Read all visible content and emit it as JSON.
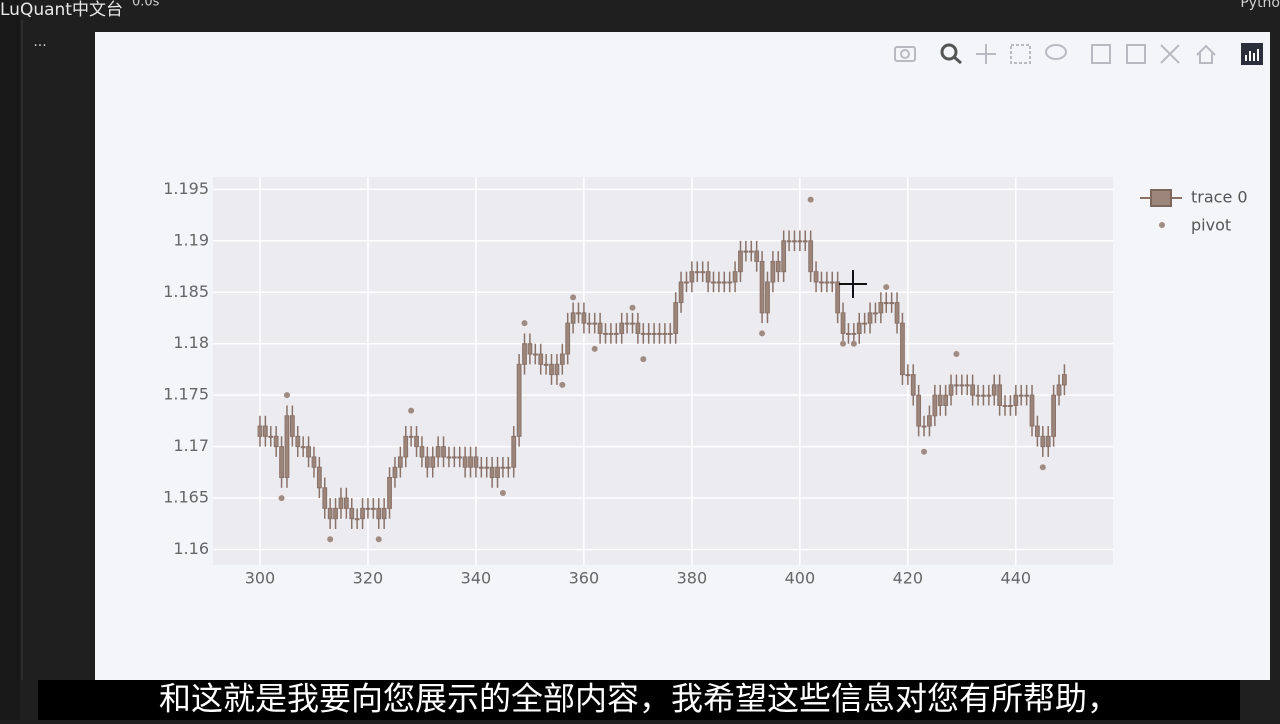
{
  "window": {
    "brand": "LuQuant中文台",
    "cell_time": "0.0s",
    "kernel": "Pytho",
    "cell_menu": "..."
  },
  "chart_data": {
    "type": "candlestick",
    "ylim": [
      1.1585,
      1.1962
    ],
    "yticks": [
      1.16,
      1.165,
      1.17,
      1.175,
      1.18,
      1.185,
      1.19,
      1.195
    ],
    "xlim": [
      291.3,
      458
    ],
    "xticks": [
      300,
      320,
      340,
      360,
      380,
      400,
      420,
      440
    ],
    "grid": true,
    "legend": "right",
    "series": [
      {
        "name": "trace 0",
        "type": "candlestick",
        "color": "#9c857a",
        "x": [
          300,
          301,
          302,
          303,
          304,
          305,
          306,
          307,
          308,
          309,
          310,
          311,
          312,
          313,
          314,
          315,
          316,
          317,
          318,
          319,
          320,
          321,
          322,
          323,
          324,
          325,
          326,
          327,
          328,
          329,
          330,
          331,
          332,
          333,
          334,
          335,
          336,
          337,
          338,
          339,
          340,
          341,
          342,
          343,
          344,
          345,
          346,
          347,
          348,
          349,
          350,
          351,
          352,
          353,
          354,
          355,
          356,
          357,
          358,
          359,
          360,
          361,
          362,
          363,
          364,
          365,
          366,
          367,
          368,
          369,
          370,
          371,
          372,
          373,
          374,
          375,
          376,
          377,
          378,
          379,
          380,
          381,
          382,
          383,
          384,
          385,
          386,
          387,
          388,
          389,
          390,
          391,
          392,
          393,
          394,
          395,
          396,
          397,
          398,
          399,
          400,
          401,
          402,
          403,
          404,
          405,
          406,
          407,
          408,
          409,
          410,
          411,
          412,
          413,
          414,
          415,
          416,
          417,
          418,
          419,
          420,
          421,
          422,
          423,
          424,
          425,
          426,
          427,
          428,
          429,
          430,
          431,
          432,
          433,
          434,
          435,
          436,
          437,
          438,
          439,
          440,
          441,
          442,
          443,
          444,
          445,
          446,
          447,
          448,
          449
        ],
        "open": [
          1.171,
          1.172,
          1.171,
          1.171,
          1.17,
          1.167,
          1.173,
          1.171,
          1.17,
          1.17,
          1.169,
          1.168,
          1.166,
          1.164,
          1.163,
          1.164,
          1.165,
          1.164,
          1.163,
          1.163,
          1.164,
          1.164,
          1.164,
          1.163,
          1.164,
          1.167,
          1.168,
          1.169,
          1.171,
          1.171,
          1.17,
          1.169,
          1.168,
          1.169,
          1.17,
          1.169,
          1.169,
          1.169,
          1.169,
          1.168,
          1.169,
          1.168,
          1.168,
          1.168,
          1.167,
          1.168,
          1.168,
          1.168,
          1.171,
          1.178,
          1.18,
          1.179,
          1.179,
          1.178,
          1.178,
          1.177,
          1.178,
          1.179,
          1.182,
          1.183,
          1.183,
          1.182,
          1.182,
          1.182,
          1.181,
          1.181,
          1.181,
          1.181,
          1.182,
          1.182,
          1.182,
          1.181,
          1.181,
          1.181,
          1.181,
          1.181,
          1.181,
          1.181,
          1.184,
          1.186,
          1.186,
          1.187,
          1.187,
          1.187,
          1.186,
          1.186,
          1.186,
          1.186,
          1.186,
          1.187,
          1.189,
          1.189,
          1.189,
          1.188,
          1.183,
          1.186,
          1.188,
          1.187,
          1.19,
          1.19,
          1.19,
          1.19,
          1.19,
          1.187,
          1.186,
          1.186,
          1.186,
          1.186,
          1.183,
          1.181,
          1.181,
          1.181,
          1.182,
          1.182,
          1.183,
          1.183,
          1.184,
          1.184,
          1.184,
          1.182,
          1.177,
          1.177,
          1.175,
          1.172,
          1.172,
          1.173,
          1.175,
          1.174,
          1.175,
          1.176,
          1.176,
          1.176,
          1.176,
          1.175,
          1.175,
          1.175,
          1.175,
          1.176,
          1.174,
          1.174,
          1.174,
          1.175,
          1.175,
          1.175,
          1.172,
          1.171,
          1.17,
          1.171,
          1.175,
          1.176
        ],
        "high": [
          1.173,
          1.173,
          1.172,
          1.172,
          1.171,
          1.174,
          1.174,
          1.172,
          1.171,
          1.171,
          1.17,
          1.169,
          1.167,
          1.165,
          1.165,
          1.166,
          1.166,
          1.165,
          1.164,
          1.165,
          1.165,
          1.165,
          1.165,
          1.165,
          1.168,
          1.169,
          1.17,
          1.172,
          1.172,
          1.172,
          1.171,
          1.17,
          1.17,
          1.171,
          1.171,
          1.17,
          1.17,
          1.17,
          1.17,
          1.17,
          1.17,
          1.169,
          1.169,
          1.169,
          1.169,
          1.169,
          1.169,
          1.172,
          1.179,
          1.181,
          1.181,
          1.18,
          1.18,
          1.179,
          1.179,
          1.179,
          1.18,
          1.183,
          1.184,
          1.184,
          1.184,
          1.183,
          1.183,
          1.183,
          1.182,
          1.182,
          1.182,
          1.183,
          1.183,
          1.183,
          1.183,
          1.182,
          1.182,
          1.182,
          1.182,
          1.182,
          1.182,
          1.185,
          1.187,
          1.187,
          1.188,
          1.188,
          1.188,
          1.188,
          1.187,
          1.187,
          1.187,
          1.187,
          1.188,
          1.19,
          1.19,
          1.19,
          1.19,
          1.189,
          1.187,
          1.189,
          1.189,
          1.191,
          1.191,
          1.191,
          1.191,
          1.191,
          1.191,
          1.188,
          1.187,
          1.187,
          1.187,
          1.187,
          1.184,
          1.182,
          1.182,
          1.183,
          1.183,
          1.184,
          1.184,
          1.185,
          1.185,
          1.185,
          1.185,
          1.183,
          1.178,
          1.178,
          1.176,
          1.173,
          1.174,
          1.176,
          1.176,
          1.176,
          1.177,
          1.177,
          1.177,
          1.177,
          1.177,
          1.176,
          1.176,
          1.176,
          1.177,
          1.177,
          1.175,
          1.175,
          1.176,
          1.176,
          1.176,
          1.176,
          1.173,
          1.172,
          1.172,
          1.176,
          1.177,
          1.178
        ],
        "low": [
          1.17,
          1.17,
          1.17,
          1.169,
          1.166,
          1.166,
          1.17,
          1.169,
          1.169,
          1.168,
          1.167,
          1.165,
          1.163,
          1.162,
          1.162,
          1.163,
          1.163,
          1.162,
          1.162,
          1.162,
          1.163,
          1.163,
          1.162,
          1.162,
          1.163,
          1.166,
          1.167,
          1.168,
          1.17,
          1.169,
          1.168,
          1.167,
          1.167,
          1.168,
          1.168,
          1.168,
          1.168,
          1.168,
          1.167,
          1.167,
          1.167,
          1.167,
          1.167,
          1.166,
          1.166,
          1.167,
          1.167,
          1.167,
          1.17,
          1.177,
          1.178,
          1.178,
          1.177,
          1.177,
          1.176,
          1.176,
          1.177,
          1.178,
          1.181,
          1.182,
          1.181,
          1.181,
          1.181,
          1.18,
          1.18,
          1.18,
          1.18,
          1.18,
          1.181,
          1.181,
          1.18,
          1.18,
          1.18,
          1.18,
          1.18,
          1.18,
          1.18,
          1.18,
          1.183,
          1.185,
          1.185,
          1.186,
          1.186,
          1.185,
          1.185,
          1.185,
          1.185,
          1.185,
          1.185,
          1.186,
          1.188,
          1.188,
          1.187,
          1.182,
          1.182,
          1.185,
          1.186,
          1.186,
          1.189,
          1.189,
          1.189,
          1.189,
          1.186,
          1.185,
          1.185,
          1.185,
          1.185,
          1.182,
          1.18,
          1.18,
          1.18,
          1.18,
          1.181,
          1.181,
          1.182,
          1.182,
          1.183,
          1.183,
          1.181,
          1.176,
          1.176,
          1.174,
          1.171,
          1.171,
          1.171,
          1.172,
          1.173,
          1.173,
          1.174,
          1.175,
          1.175,
          1.175,
          1.174,
          1.174,
          1.174,
          1.174,
          1.174,
          1.173,
          1.173,
          1.173,
          1.173,
          1.174,
          1.174,
          1.171,
          1.17,
          1.169,
          1.169,
          1.17,
          1.174,
          1.175
        ],
        "close": [
          1.172,
          1.171,
          1.171,
          1.17,
          1.167,
          1.173,
          1.171,
          1.17,
          1.17,
          1.169,
          1.168,
          1.166,
          1.164,
          1.163,
          1.164,
          1.165,
          1.164,
          1.163,
          1.163,
          1.164,
          1.164,
          1.164,
          1.163,
          1.164,
          1.167,
          1.168,
          1.169,
          1.171,
          1.171,
          1.17,
          1.169,
          1.168,
          1.169,
          1.17,
          1.169,
          1.169,
          1.169,
          1.169,
          1.168,
          1.169,
          1.168,
          1.168,
          1.168,
          1.167,
          1.168,
          1.168,
          1.168,
          1.171,
          1.178,
          1.18,
          1.179,
          1.179,
          1.178,
          1.178,
          1.177,
          1.178,
          1.179,
          1.182,
          1.183,
          1.183,
          1.182,
          1.182,
          1.182,
          1.181,
          1.181,
          1.181,
          1.181,
          1.182,
          1.182,
          1.182,
          1.181,
          1.181,
          1.181,
          1.181,
          1.181,
          1.181,
          1.181,
          1.184,
          1.186,
          1.186,
          1.187,
          1.187,
          1.187,
          1.186,
          1.186,
          1.186,
          1.186,
          1.186,
          1.187,
          1.189,
          1.189,
          1.189,
          1.188,
          1.183,
          1.186,
          1.188,
          1.187,
          1.19,
          1.19,
          1.19,
          1.19,
          1.19,
          1.187,
          1.186,
          1.186,
          1.186,
          1.186,
          1.183,
          1.181,
          1.181,
          1.181,
          1.182,
          1.182,
          1.183,
          1.183,
          1.184,
          1.184,
          1.184,
          1.182,
          1.177,
          1.177,
          1.175,
          1.172,
          1.172,
          1.173,
          1.175,
          1.174,
          1.175,
          1.176,
          1.176,
          1.176,
          1.176,
          1.175,
          1.175,
          1.175,
          1.175,
          1.176,
          1.174,
          1.174,
          1.174,
          1.175,
          1.175,
          1.175,
          1.172,
          1.171,
          1.17,
          1.171,
          1.175,
          1.176,
          1.177
        ]
      },
      {
        "name": "pivot",
        "type": "scatter",
        "color": "#a08b82",
        "x": [
          304,
          305,
          313,
          322,
          328,
          345,
          349,
          356,
          358,
          362,
          369,
          371,
          393,
          402,
          408,
          410,
          416,
          423,
          429,
          445
        ],
        "values": [
          1.165,
          1.175,
          1.161,
          1.161,
          1.1735,
          1.1655,
          1.182,
          1.176,
          1.1845,
          1.1795,
          1.1835,
          1.1785,
          1.181,
          1.194,
          1.18,
          1.18,
          1.1855,
          1.1695,
          1.179,
          1.168
        ]
      }
    ]
  },
  "subtitle": "和这就是我要向您展示的全部内容，我希望这些信息对您有所帮助，"
}
